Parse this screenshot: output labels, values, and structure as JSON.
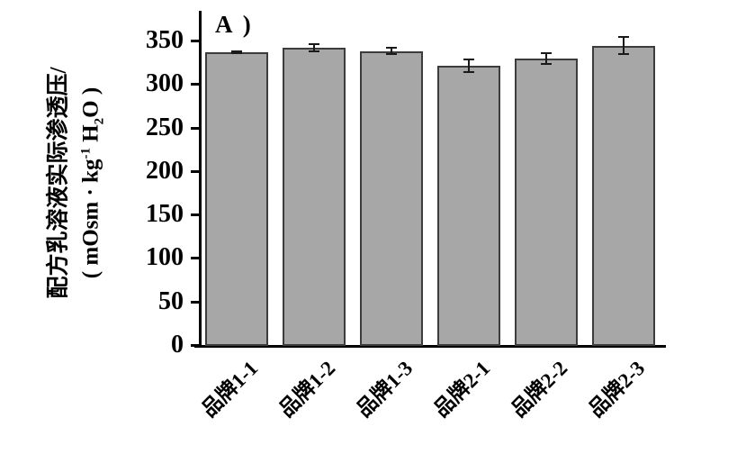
{
  "figure": {
    "panel_label": "A )",
    "y_axis": {
      "title_line1": "配方乳溶液实际渗透压/",
      "unit_prefix": "( mOsm · kg",
      "unit_superscript": "-1",
      "unit_mid": " H",
      "unit_subscript": "2",
      "unit_suffix": "O )"
    }
  },
  "chart_data": {
    "type": "bar",
    "panel_label": "A",
    "title": "",
    "xlabel": "",
    "ylabel": "配方乳溶液实际渗透压/( mOsm · kg⁻¹ H₂O )",
    "categories": [
      "品牌1-1",
      "品牌1-2",
      "品牌1-3",
      "品牌2-1",
      "品牌2-2",
      "品牌2-3"
    ],
    "values": [
      337,
      342,
      338,
      321,
      329,
      344
    ],
    "errors": [
      1,
      4,
      4,
      7,
      6,
      10
    ],
    "ylim": [
      0,
      350
    ],
    "yticks": [
      0,
      50,
      100,
      150,
      200,
      250,
      300,
      350
    ],
    "grid": false,
    "legend": false,
    "bar_fill": "#a7a7a7",
    "bar_border": "#3c3c3c",
    "error_color": "#1a1a1a",
    "axis_color": "#000000"
  }
}
